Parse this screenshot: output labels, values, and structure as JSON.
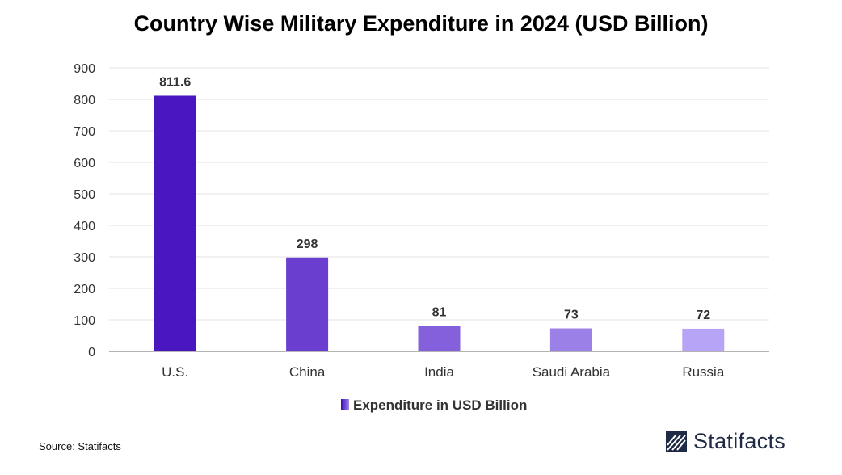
{
  "chart_data": {
    "type": "bar",
    "title": "Country Wise Military Expenditure in 2024 (USD Billion)",
    "categories": [
      "U.S.",
      "China",
      "India",
      "Saudi Arabia",
      "Russia"
    ],
    "series": [
      {
        "name": "Expenditure in USD Billion",
        "values": [
          811.6,
          298,
          81,
          73,
          72
        ]
      }
    ],
    "data_labels": [
      "811.6",
      "298",
      "81",
      "73",
      "72"
    ],
    "bar_colors": [
      "#4a16c0",
      "#6a3fd0",
      "#8460dd",
      "#9b80e8",
      "#b8a4f6"
    ],
    "ylim": [
      0,
      900
    ],
    "yticks": [
      0,
      100,
      200,
      300,
      400,
      500,
      600,
      700,
      800,
      900
    ],
    "grid": true,
    "legend_position": "bottom-center",
    "xlabel": "",
    "ylabel": ""
  },
  "footer": {
    "source": "Source: Statifacts",
    "brand": "Statifacts"
  },
  "colors": {
    "grid": "#e3e3e3",
    "axis": "#9a9a9a",
    "brand_text": "#1f2a44"
  }
}
